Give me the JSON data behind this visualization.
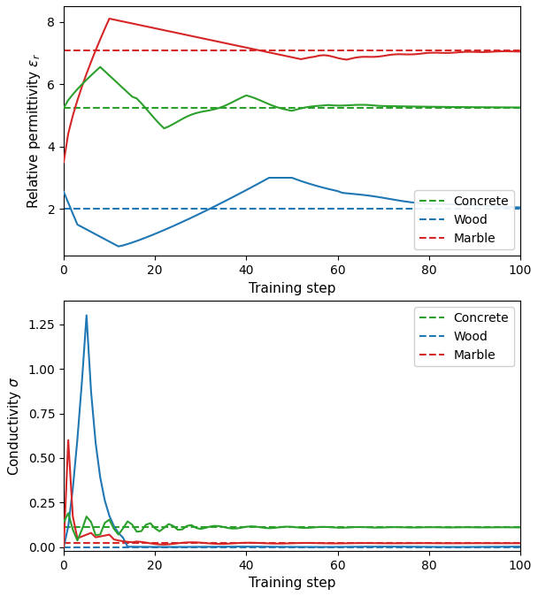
{
  "concrete_eps_target": 5.24,
  "wood_eps_target": 2.0,
  "marble_eps_target": 7.074,
  "concrete_sigma_target": 0.111,
  "wood_sigma_target": 0.0,
  "marble_sigma_target": 0.022,
  "colors": {
    "concrete": "#2ca02c",
    "wood": "#1f77b4",
    "marble": "#d62728"
  },
  "xlabel": "Training step",
  "ylabel_top": "Relative permittivity $\\epsilon_r$",
  "ylabel_bottom": "Conductivity $\\sigma$",
  "legend_labels": [
    "Concrete",
    "Wood",
    "Marble"
  ],
  "xlim": [
    0,
    100
  ],
  "figsize": [
    6.08,
    6.74
  ],
  "dpi": 100
}
